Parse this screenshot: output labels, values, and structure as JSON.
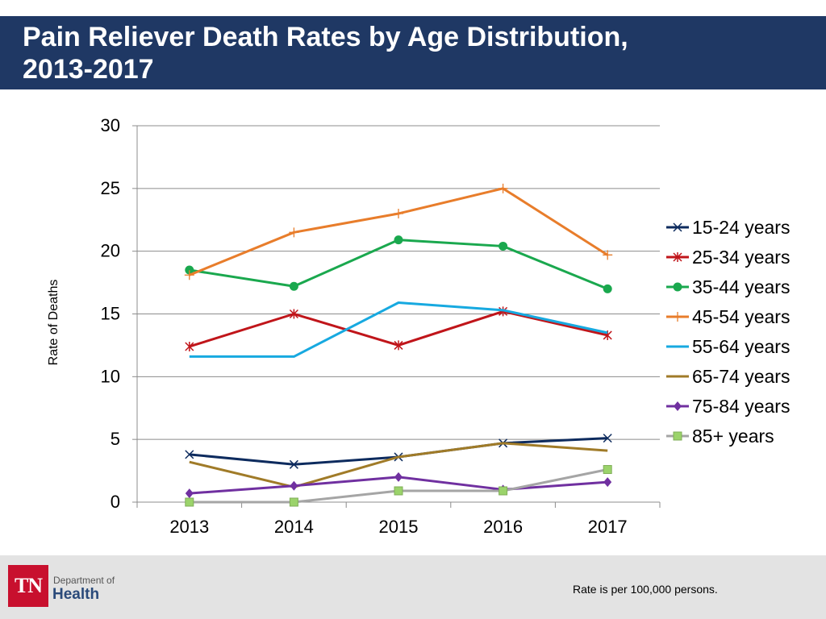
{
  "header": {
    "title": "Pain Reliever Death Rates by Age Distribution,\n2013-2017"
  },
  "footer": {
    "logo_abbr": "TN",
    "logo_dept": "Department of",
    "logo_health": "Health",
    "note": "Rate is per 100,000 persons."
  },
  "chart_data": {
    "type": "line",
    "title": "",
    "xlabel": "",
    "ylabel": "Rate of Deaths",
    "categories": [
      "2013",
      "2014",
      "2015",
      "2016",
      "2017"
    ],
    "ylim": [
      0,
      30
    ],
    "yticks": [
      0,
      5,
      10,
      15,
      20,
      25,
      30
    ],
    "grid": true,
    "legend": "right",
    "series": [
      {
        "name": "15-24 years",
        "color": "#0d2b5e",
        "marker": "x",
        "values": [
          3.8,
          3.0,
          3.6,
          4.7,
          5.1
        ]
      },
      {
        "name": "25-34 years",
        "color": "#c0151a",
        "marker": "star",
        "values": [
          12.4,
          15.0,
          12.5,
          15.2,
          13.3
        ]
      },
      {
        "name": "35-44 years",
        "color": "#1aa84e",
        "marker": "circle",
        "values": [
          18.5,
          17.2,
          20.9,
          20.4,
          17.0
        ]
      },
      {
        "name": "45-54 years",
        "color": "#e87d2b",
        "marker": "plus",
        "values": [
          18.1,
          21.5,
          23.0,
          25.0,
          19.7
        ]
      },
      {
        "name": "55-64 years",
        "color": "#17a9e0",
        "marker": "none",
        "values": [
          11.6,
          11.6,
          15.9,
          15.3,
          13.5
        ]
      },
      {
        "name": "65-74 years",
        "color": "#a07b28",
        "marker": "none",
        "values": [
          3.2,
          1.2,
          3.6,
          4.7,
          4.1
        ]
      },
      {
        "name": "75-84 years",
        "color": "#7030a0",
        "marker": "diamond",
        "values": [
          0.7,
          1.3,
          2.0,
          1.0,
          1.6
        ]
      },
      {
        "name": "85+ years",
        "color": "#a5a5a5",
        "marker": "square",
        "values": [
          0.0,
          0.0,
          0.9,
          0.9,
          2.6
        ]
      }
    ]
  }
}
